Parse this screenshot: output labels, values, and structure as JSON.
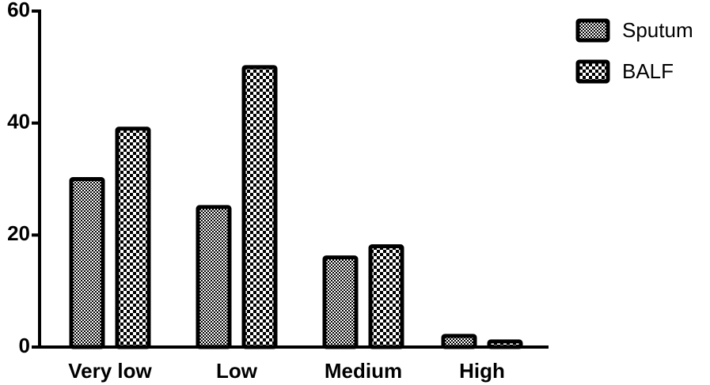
{
  "chart_data": {
    "type": "bar",
    "title": "",
    "xlabel": "",
    "ylabel": "",
    "categories": [
      "Very low",
      "Low",
      "Medium",
      "High"
    ],
    "series": [
      {
        "name": "Sputum",
        "values": [
          30,
          25,
          16,
          2
        ],
        "pattern": "fine-checker"
      },
      {
        "name": "BALF",
        "values": [
          39,
          50,
          18,
          1
        ],
        "pattern": "coarse-checker"
      }
    ],
    "ylim": [
      0,
      60
    ],
    "yticks": [
      0,
      20,
      40,
      60
    ],
    "grid": false,
    "legend_position": "top-right",
    "colors": {
      "ink": "#000000",
      "background": "#ffffff"
    }
  }
}
